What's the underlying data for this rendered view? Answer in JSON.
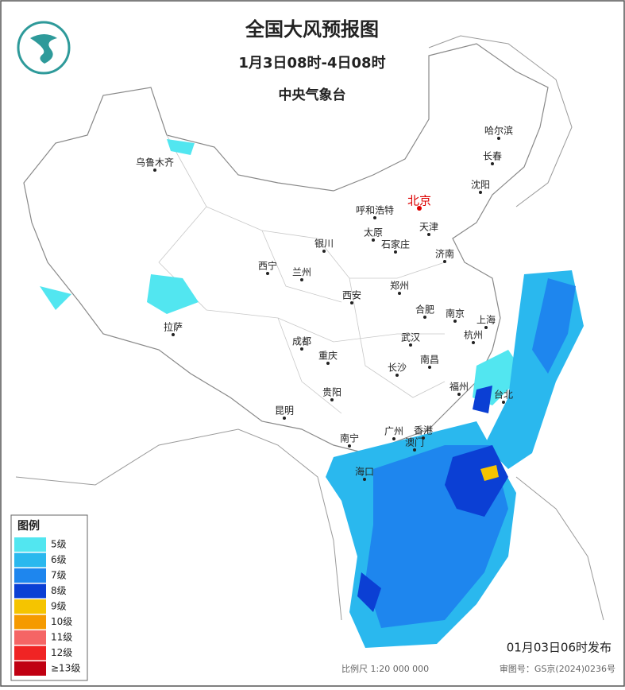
{
  "header": {
    "title": "全国大风预报图",
    "period": "1月3日08时-4日08时",
    "issuer": "中央气象台"
  },
  "cities": [
    "乌鲁木齐",
    "哈尔滨",
    "长春",
    "沈阳",
    "北京",
    "呼和浩特",
    "天津",
    "太原",
    "石家庄",
    "济南",
    "银川",
    "西宁",
    "兰州",
    "郑州",
    "西安",
    "合肥",
    "南京",
    "上海",
    "拉萨",
    "成都",
    "武汉",
    "杭州",
    "重庆",
    "长沙",
    "南昌",
    "福州",
    "台北",
    "贵阳",
    "昆明",
    "南宁",
    "广州",
    "香港",
    "澳门",
    "海口"
  ],
  "legend": {
    "title": "图例",
    "items": [
      {
        "label": "5级",
        "color": "#52e6f0"
      },
      {
        "label": "6级",
        "color": "#2ab8ee"
      },
      {
        "label": "7级",
        "color": "#1e86ee"
      },
      {
        "label": "8级",
        "color": "#0b3fd4"
      },
      {
        "label": "9级",
        "color": "#f5c400"
      },
      {
        "label": "10级",
        "color": "#f59a00"
      },
      {
        "label": "11级",
        "color": "#f56565"
      },
      {
        "label": "12级",
        "color": "#f02424"
      },
      {
        "label": "≥13级",
        "color": "#c00012"
      }
    ]
  },
  "footer": {
    "published": "01月03日06时发布",
    "scale": "比例尺 1:20 000 000",
    "approval": "审图号：GS京(2024)0236号"
  }
}
